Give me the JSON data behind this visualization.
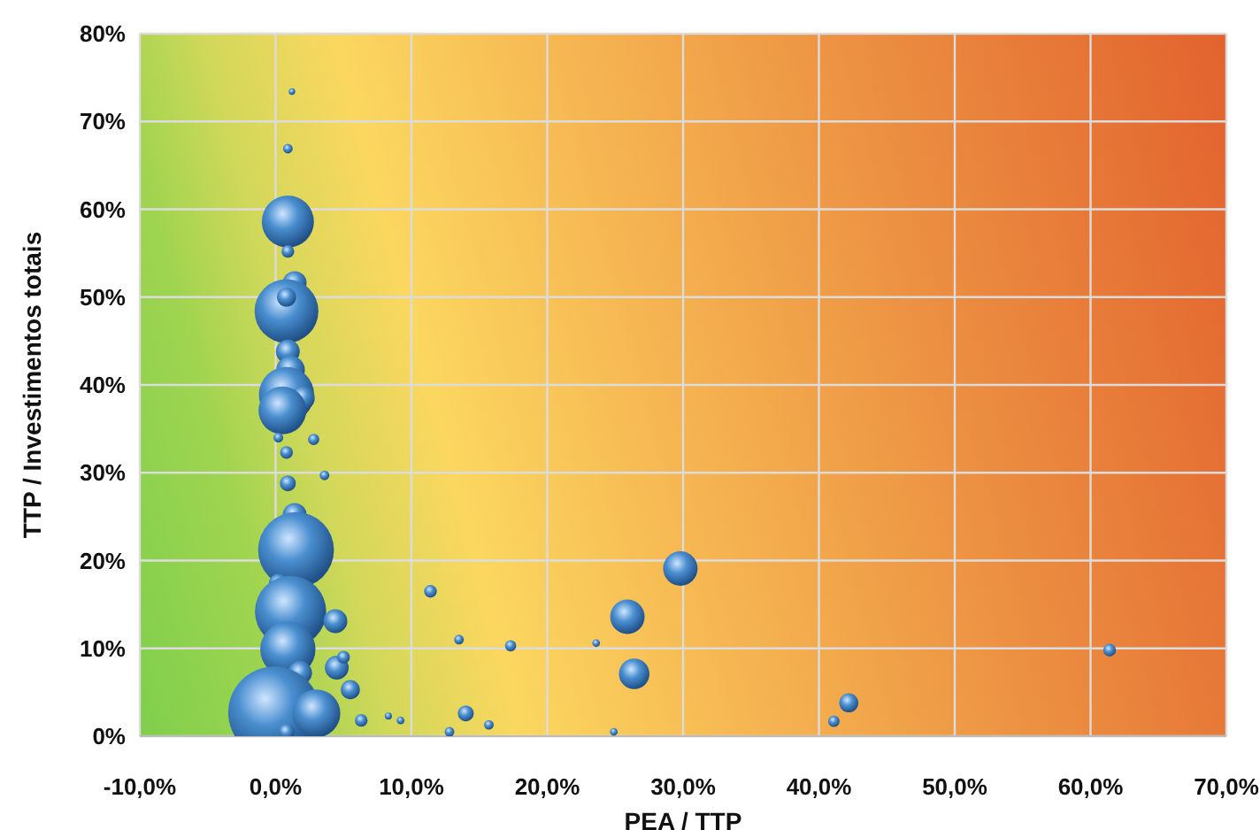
{
  "chart_data": {
    "type": "bubble",
    "xlabel": "PEA / TTP",
    "ylabel": "TTP  / Investimentos totais",
    "xlim": [
      -10,
      70
    ],
    "xticks": [
      {
        "value": -10,
        "label": "-10,0%"
      },
      {
        "value": 0,
        "label": "0,0%"
      },
      {
        "value": 10,
        "label": "10,0%"
      },
      {
        "value": 20,
        "label": "20,0%"
      },
      {
        "value": 30,
        "label": "30,0%"
      },
      {
        "value": 40,
        "label": "40,0%"
      },
      {
        "value": 50,
        "label": "50,0%"
      },
      {
        "value": 60,
        "label": "60,0%"
      },
      {
        "value": 70,
        "label": "70,0%"
      }
    ],
    "ylim": [
      0,
      80
    ],
    "yticks": [
      {
        "value": 0,
        "label": "0%"
      },
      {
        "value": 10,
        "label": "10%"
      },
      {
        "value": 20,
        "label": "20%"
      },
      {
        "value": 30,
        "label": "30%"
      },
      {
        "value": 40,
        "label": "40%"
      },
      {
        "value": 50,
        "label": "50%"
      },
      {
        "value": 60,
        "label": "60%"
      },
      {
        "value": 70,
        "label": "70%"
      },
      {
        "value": 80,
        "label": "80%"
      }
    ],
    "grid": true,
    "series": [
      {
        "color": "#4a8fd0",
        "x": [
          1.2,
          0.9,
          0.9,
          0.9,
          1.4,
          0.8,
          0.8,
          0.9,
          1.1,
          0.8,
          2.0,
          0.5,
          0.2,
          2.8,
          0.8,
          3.6,
          0.9,
          1.4,
          1.5,
          0.2,
          1.1,
          4.4,
          0.9,
          1.8,
          4.5,
          5.0,
          5.5,
          -0.1,
          3.0,
          0.8,
          6.3,
          11.4,
          13.5,
          17.3,
          23.6,
          25.9,
          26.4,
          29.8,
          14.0,
          15.7,
          12.8,
          24.9,
          42.2,
          41.1,
          61.4,
          9.2,
          8.3
        ],
        "values": [
          73.4,
          66.9,
          58.6,
          55.2,
          51.6,
          48.4,
          50.0,
          43.8,
          41.7,
          38.9,
          38.5,
          37.1,
          34.0,
          33.8,
          32.3,
          29.7,
          28.8,
          25.2,
          21.2,
          17.4,
          14.2,
          13.1,
          9.9,
          7.2,
          7.8,
          9.0,
          5.3,
          2.7,
          2.6,
          0.5,
          1.8,
          16.5,
          11.0,
          10.3,
          10.6,
          13.6,
          7.1,
          19.1,
          2.6,
          1.3,
          0.5,
          0.5,
          3.8,
          1.7,
          9.8,
          1.8,
          2.3
        ],
        "sizes": [
          0.005,
          0.011,
          0.32,
          0.019,
          0.067,
          0.48,
          0.043,
          0.067,
          0.096,
          0.36,
          0.067,
          0.27,
          0.011,
          0.015,
          0.019,
          0.011,
          0.03,
          0.067,
          0.68,
          0.043,
          0.6,
          0.067,
          0.36,
          0.067,
          0.067,
          0.019,
          0.043,
          1,
          0.27,
          0.03,
          0.019,
          0.019,
          0.011,
          0.015,
          0.007,
          0.14,
          0.11,
          0.14,
          0.03,
          0.011,
          0.011,
          0.007,
          0.043,
          0.015,
          0.019,
          0.007,
          0.006
        ]
      }
    ]
  }
}
